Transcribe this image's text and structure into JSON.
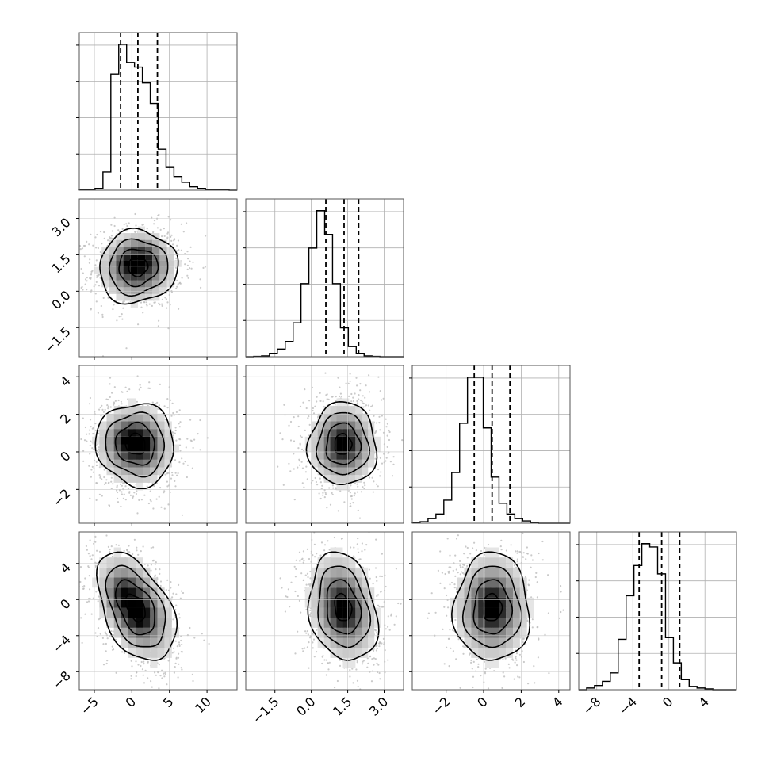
{
  "chart_data": {
    "type": "corner",
    "params": [
      {
        "range": [
          -7.0,
          14.0
        ],
        "ticks": [
          {
            "v": -5,
            "label": "−5"
          },
          {
            "v": 0,
            "label": "0"
          },
          {
            "v": 5,
            "label": "5"
          },
          {
            "v": 10,
            "label": "10"
          }
        ],
        "quantiles": [
          -1.5,
          0.8,
          3.4
        ],
        "hist": {
          "edges_start": -7.0,
          "bin_width": 1.05,
          "counts": [
            2,
            4,
            8,
            80,
            510,
            640,
            560,
            540,
            470,
            380,
            180,
            100,
            60,
            35,
            15,
            8,
            4,
            2,
            1,
            0
          ]
        }
      },
      {
        "range": [
          -2.7,
          3.8
        ],
        "ticks": [
          {
            "v": -1.5,
            "label": "−1.5"
          },
          {
            "v": 0.0,
            "label": "0.0"
          },
          {
            "v": 1.5,
            "label": "1.5"
          },
          {
            "v": 3.0,
            "label": "3.0"
          }
        ],
        "quantiles": [
          0.6,
          1.35,
          1.95
        ],
        "hist": {
          "edges_start": -2.7,
          "bin_width": 0.325,
          "counts": [
            0,
            2,
            5,
            20,
            45,
            90,
            200,
            430,
            640,
            860,
            720,
            430,
            170,
            60,
            20,
            5,
            2,
            0,
            0,
            0
          ]
        }
      },
      {
        "range": [
          -3.8,
          4.6
        ],
        "ticks": [
          {
            "v": -2,
            "label": "−2"
          },
          {
            "v": 0,
            "label": "0"
          },
          {
            "v": 2,
            "label": "2"
          },
          {
            "v": 4,
            "label": "4"
          }
        ],
        "quantiles": [
          -0.5,
          0.45,
          1.4
        ],
        "hist": {
          "edges_start": -3.8,
          "bin_width": 0.42,
          "counts": [
            5,
            10,
            30,
            60,
            150,
            330,
            650,
            950,
            950,
            620,
            300,
            130,
            60,
            30,
            15,
            5,
            0,
            0,
            0,
            0
          ]
        }
      },
      {
        "range": [
          -10.0,
          7.5
        ],
        "ticks": [
          {
            "v": -8,
            "label": "−8"
          },
          {
            "v": -4,
            "label": "−4"
          },
          {
            "v": 0,
            "label": "0"
          },
          {
            "v": 4,
            "label": "4"
          }
        ],
        "quantiles": [
          -3.3,
          -0.8,
          1.2
        ],
        "hist": {
          "edges_start": -10.0,
          "bin_width": 0.875,
          "counts": [
            0,
            10,
            25,
            50,
            100,
            300,
            560,
            740,
            870,
            850,
            690,
            310,
            160,
            60,
            20,
            10,
            5,
            0,
            0,
            0
          ]
        }
      }
    ],
    "pairs": [
      {
        "row": 1,
        "col": 0,
        "mean": [
          0.8,
          1.0
        ],
        "sd": [
          2.6,
          0.75
        ],
        "corr": 0.05,
        "peaks": [
          [
            -0.4,
            1.2
          ],
          [
            1.6,
            1.4
          ]
        ],
        "wrange": [
          -4.5,
          6.5
        ]
      },
      {
        "row": 2,
        "col": 0,
        "mean": [
          0.5,
          0.4
        ],
        "sd": [
          2.6,
          1.1
        ],
        "corr": -0.05,
        "peaks": [
          [
            -0.6,
            0.6
          ],
          [
            1.5,
            0.4
          ]
        ],
        "wrange": [
          -4.5,
          6.5
        ]
      },
      {
        "row": 2,
        "col": 1,
        "mean": [
          1.3,
          0.4
        ],
        "sd": [
          0.7,
          1.1
        ],
        "corr": 0.0,
        "peaks": [
          [
            1.35,
            0.4
          ]
        ],
        "wrange": [
          -0.6,
          2.8
        ]
      },
      {
        "row": 3,
        "col": 0,
        "mean": [
          0.5,
          -0.9
        ],
        "sd": [
          2.6,
          3.0
        ],
        "corr": -0.45,
        "peaks": [
          [
            -1.2,
            0.6
          ],
          [
            1.0,
            -1.8
          ]
        ],
        "wrange": [
          -4.5,
          6.5
        ]
      },
      {
        "row": 3,
        "col": 1,
        "mean": [
          1.3,
          -0.9
        ],
        "sd": [
          0.7,
          3.0
        ],
        "corr": -0.2,
        "peaks": [
          [
            1.35,
            -1.2
          ]
        ],
        "wrange": [
          -0.6,
          2.8
        ]
      },
      {
        "row": 3,
        "col": 2,
        "mean": [
          0.45,
          -0.9
        ],
        "sd": [
          1.0,
          3.0
        ],
        "corr": 0.0,
        "peaks": [
          [
            0.45,
            -0.8
          ]
        ],
        "wrange": [
          -2.2,
          3.0
        ]
      }
    ],
    "contour_levels_sigma": [
      0.5,
      1.0,
      1.5,
      2.0
    ],
    "grid": true
  }
}
